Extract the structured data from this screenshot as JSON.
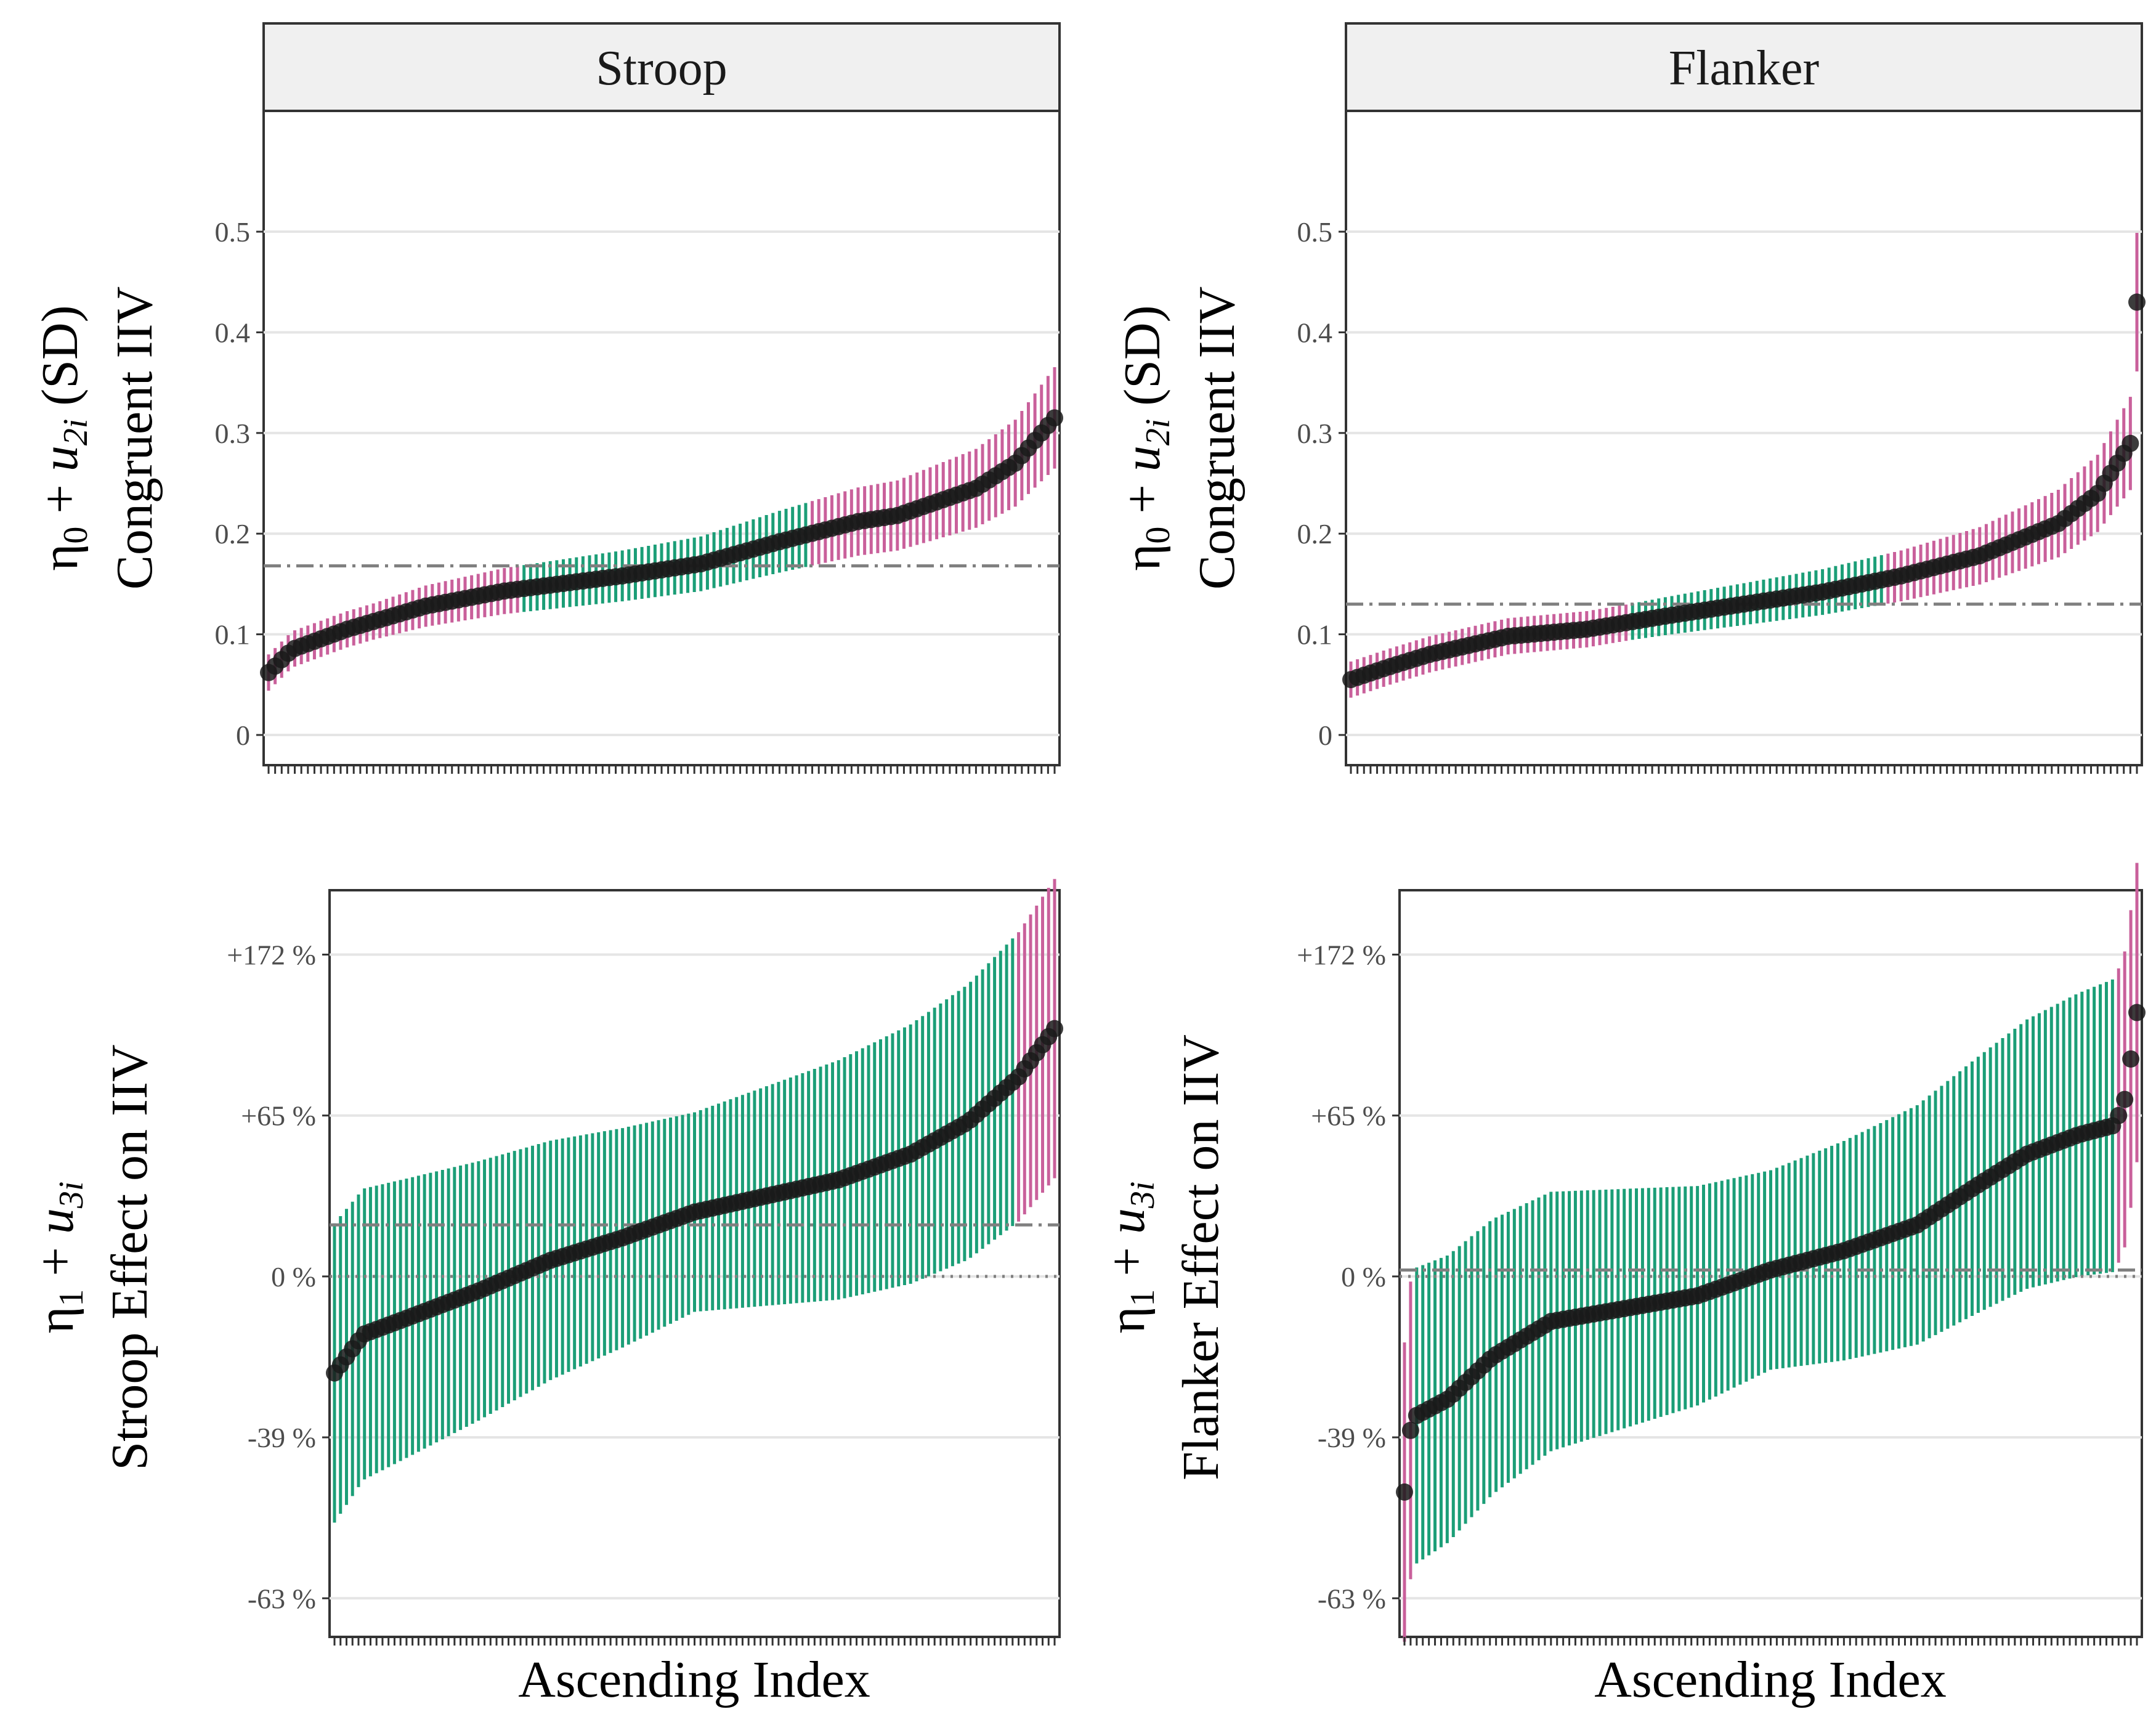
{
  "strips": {
    "top_left": "Stroop",
    "top_right": "Flanker"
  },
  "labels": {
    "x_axis_left": "Ascending Index",
    "x_axis_right": "Ascending Index",
    "y_tl_line1": "η0 + u2i  (SD)",
    "y_tl_line2": "Congruent IIV",
    "y_tr_line1": "η0 + u2i  (SD)",
    "y_tr_line2": "Congruent IIV",
    "y_bl_line1": "η1 + u3i",
    "y_bl_line2": "Stroop Effect on IIV",
    "y_br_line1": "η1 + u3i",
    "y_br_line2": "Flanker Effect on IIV"
  },
  "colors": {
    "credible_excludes_ref": "#c9609b",
    "credible_includes_ref": "#1b9e77",
    "point": "#1a1a1a",
    "reference_line": "#808080",
    "grid": "#e5e5e5",
    "strip_fill": "#f0f0f0"
  },
  "chart_data": [
    {
      "panel": "top-left",
      "type": "scatter",
      "strip": "Stroop",
      "ylabel": "η0 + u2i  (SD)  Congruent IIV",
      "xlabel": "",
      "n_points": 121,
      "y_ticks": [
        "0",
        "0.1",
        "0.2",
        "0.3",
        "0.4",
        "0.5"
      ],
      "y_tick_values": [
        0,
        0.1,
        0.2,
        0.3,
        0.4,
        0.5
      ],
      "ylim": [
        -0.03,
        0.62
      ],
      "reference_line": {
        "value": 0.168,
        "style": "dash-dot"
      },
      "interval_halfwidth_relative": 0.16,
      "knots": [
        [
          0,
          0.062
        ],
        [
          0.03,
          0.085
        ],
        [
          0.1,
          0.105
        ],
        [
          0.2,
          0.128
        ],
        [
          0.3,
          0.143
        ],
        [
          0.45,
          0.158
        ],
        [
          0.55,
          0.17
        ],
        [
          0.65,
          0.192
        ],
        [
          0.75,
          0.212
        ],
        [
          0.8,
          0.218
        ],
        [
          0.9,
          0.245
        ],
        [
          0.95,
          0.27
        ],
        [
          1.0,
          0.315
        ]
      ],
      "grid": "horizontal",
      "legend": "none"
    },
    {
      "panel": "top-right",
      "type": "scatter",
      "strip": "Flanker",
      "ylabel": "η0 + u2i  (SD)  Congruent IIV",
      "xlabel": "",
      "n_points": 121,
      "y_ticks": [
        "0",
        "0.1",
        "0.2",
        "0.3",
        "0.4",
        "0.5"
      ],
      "y_tick_values": [
        0,
        0.1,
        0.2,
        0.3,
        0.4,
        0.5
      ],
      "ylim": [
        -0.03,
        0.62
      ],
      "reference_line": {
        "value": 0.13,
        "style": "dash-dot"
      },
      "interval_halfwidth_relative": 0.16,
      "knots": [
        [
          0,
          0.055
        ],
        [
          0.05,
          0.068
        ],
        [
          0.1,
          0.08
        ],
        [
          0.2,
          0.098
        ],
        [
          0.3,
          0.105
        ],
        [
          0.4,
          0.118
        ],
        [
          0.5,
          0.13
        ],
        [
          0.6,
          0.142
        ],
        [
          0.7,
          0.158
        ],
        [
          0.8,
          0.178
        ],
        [
          0.9,
          0.21
        ],
        [
          0.95,
          0.24
        ],
        [
          0.975,
          0.27
        ],
        [
          0.992,
          0.29
        ],
        [
          1.0,
          0.43
        ]
      ],
      "grid": "horizontal",
      "legend": "none"
    },
    {
      "panel": "bottom-left",
      "type": "scatter",
      "ylabel": "η1 + u3i  Stroop Effect on IIV",
      "xlabel": "Ascending Index",
      "n_points": 121,
      "y_ticks": [
        "-63 %",
        "-39 %",
        "0 %",
        "+65 %",
        "+172 %"
      ],
      "y_tick_values": [
        -1.0,
        -0.5,
        0,
        0.5,
        1.0
      ],
      "ylim": [
        -1.12,
        1.2
      ],
      "reference_line": {
        "value": 0.16,
        "style": "dash-dot"
      },
      "zero_line": {
        "value": 0,
        "style": "dotted"
      },
      "interval_halfwidth": 0.31,
      "knots": [
        [
          0,
          -0.3
        ],
        [
          0.04,
          -0.18
        ],
        [
          0.1,
          -0.13
        ],
        [
          0.2,
          -0.045
        ],
        [
          0.3,
          0.05
        ],
        [
          0.4,
          0.12
        ],
        [
          0.5,
          0.2
        ],
        [
          0.6,
          0.25
        ],
        [
          0.7,
          0.3
        ],
        [
          0.8,
          0.38
        ],
        [
          0.88,
          0.48
        ],
        [
          0.95,
          0.62
        ],
        [
          1.0,
          0.77
        ]
      ],
      "grid": "horizontal",
      "legend": "none"
    },
    {
      "panel": "bottom-right",
      "type": "scatter",
      "ylabel": "η1 + u3i  Flanker Effect on IIV",
      "xlabel": "Ascending Index",
      "n_points": 121,
      "y_ticks": [
        "-63 %",
        "-39 %",
        "0 %",
        "+65 %",
        "+172 %"
      ],
      "y_tick_values": [
        -1.0,
        -0.5,
        0,
        0.5,
        1.0
      ],
      "ylim": [
        -1.12,
        1.2
      ],
      "reference_line": {
        "value": 0.02,
        "style": "dash-dot"
      },
      "zero_line": {
        "value": 0,
        "style": "dotted"
      },
      "interval_halfwidth": 0.31,
      "knots": [
        [
          0,
          -0.67
        ],
        [
          0.01,
          -0.44
        ],
        [
          0.06,
          -0.38
        ],
        [
          0.12,
          -0.25
        ],
        [
          0.2,
          -0.14
        ],
        [
          0.3,
          -0.1
        ],
        [
          0.4,
          -0.06
        ],
        [
          0.5,
          0.02
        ],
        [
          0.6,
          0.08
        ],
        [
          0.7,
          0.16
        ],
        [
          0.78,
          0.28
        ],
        [
          0.85,
          0.38
        ],
        [
          0.92,
          0.44
        ],
        [
          0.97,
          0.47
        ],
        [
          0.985,
          0.56
        ],
        [
          1.0,
          0.82
        ]
      ],
      "grid": "horizontal",
      "legend": "none"
    }
  ]
}
